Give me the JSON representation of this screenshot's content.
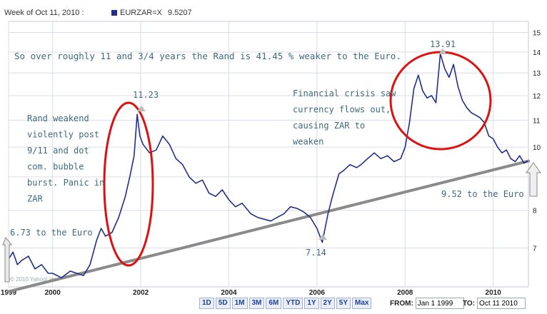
{
  "header": {
    "week_label": "Week of Oct 11, 2010 :",
    "series_label": "EURZAR=X",
    "series_value": "9.5207"
  },
  "watermark": "© 2010 Yahoo! Inc.",
  "toolbar": {
    "ranges": [
      "1D",
      "5D",
      "1M",
      "3M",
      "6M",
      "YTD",
      "1Y",
      "2Y",
      "5Y",
      "Max"
    ],
    "from_label": "FROM:",
    "from_value": "Jan 1 1999",
    "to_label": "TO:",
    "to_value": "Oct 11 2010"
  },
  "annotations": {
    "summary": "So over roughly 11 and 3/4 years the Rand is 41.45 % weaker to the Euro.",
    "rand_weakened": [
      "Rand weakend",
      "violently post",
      "9/11 and dot",
      "com. bubble",
      "burst. Panic in",
      "ZAR"
    ],
    "financial_crisis": [
      "Financial crisis saw",
      "currency flows out,",
      "causing ZAR to",
      "weaken"
    ],
    "start_note": "6.73 to the Euro",
    "end_note": "9.52 to the Euro",
    "peak_2001": "11.23",
    "low_2006": "7.14",
    "peak_2008": "13.91"
  },
  "colors": {
    "series": "#1f2f8a",
    "trendline": "#8a8a8a",
    "ellipse": "#dd1111",
    "annotation_text": "#3f6a7c",
    "grid": "#d9dde8"
  },
  "chart_data": {
    "type": "line",
    "title": "",
    "xlabel": "",
    "ylabel": "",
    "scale": "log",
    "xlim": [
      1999.0,
      2010.8
    ],
    "ylim": [
      6.1,
      15.6
    ],
    "x_ticks": [
      1999,
      2000,
      2002,
      2004,
      2006,
      2008,
      2010
    ],
    "y_ticks": [
      7,
      8,
      9,
      10,
      11,
      12,
      13,
      14,
      15
    ],
    "grid": true,
    "legend": "top-left",
    "series": [
      {
        "name": "EURZAR=X",
        "points": [
          [
            1999.0,
            6.73
          ],
          [
            1999.1,
            6.9
          ],
          [
            1999.2,
            6.6
          ],
          [
            1999.3,
            6.7
          ],
          [
            1999.45,
            6.8
          ],
          [
            1999.6,
            6.5
          ],
          [
            1999.75,
            6.6
          ],
          [
            1999.9,
            6.4
          ],
          [
            2000.0,
            6.4
          ],
          [
            2000.2,
            6.3
          ],
          [
            2000.4,
            6.45
          ],
          [
            2000.55,
            6.4
          ],
          [
            2000.7,
            6.35
          ],
          [
            2000.85,
            6.6
          ],
          [
            2001.0,
            7.2
          ],
          [
            2001.1,
            7.5
          ],
          [
            2001.2,
            7.3
          ],
          [
            2001.35,
            7.4
          ],
          [
            2001.5,
            7.8
          ],
          [
            2001.65,
            8.4
          ],
          [
            2001.75,
            9.0
          ],
          [
            2001.85,
            9.7
          ],
          [
            2001.92,
            11.23
          ],
          [
            2001.98,
            10.4
          ],
          [
            2002.05,
            10.1
          ],
          [
            2002.2,
            9.8
          ],
          [
            2002.35,
            9.9
          ],
          [
            2002.5,
            10.4
          ],
          [
            2002.65,
            10.1
          ],
          [
            2002.8,
            9.6
          ],
          [
            2002.95,
            9.4
          ],
          [
            2003.1,
            9.0
          ],
          [
            2003.25,
            8.8
          ],
          [
            2003.4,
            8.9
          ],
          [
            2003.55,
            8.5
          ],
          [
            2003.7,
            8.4
          ],
          [
            2003.85,
            8.6
          ],
          [
            2004.0,
            8.3
          ],
          [
            2004.15,
            8.1
          ],
          [
            2004.3,
            8.2
          ],
          [
            2004.5,
            7.9
          ],
          [
            2004.65,
            7.8
          ],
          [
            2004.8,
            7.75
          ],
          [
            2004.95,
            7.7
          ],
          [
            2005.1,
            7.8
          ],
          [
            2005.25,
            7.9
          ],
          [
            2005.4,
            8.1
          ],
          [
            2005.55,
            8.05
          ],
          [
            2005.7,
            7.95
          ],
          [
            2005.85,
            7.8
          ],
          [
            2006.0,
            7.5
          ],
          [
            2006.12,
            7.14
          ],
          [
            2006.25,
            7.9
          ],
          [
            2006.35,
            8.4
          ],
          [
            2006.5,
            9.1
          ],
          [
            2006.6,
            9.2
          ],
          [
            2006.75,
            9.4
          ],
          [
            2006.9,
            9.3
          ],
          [
            2007.0,
            9.4
          ],
          [
            2007.15,
            9.6
          ],
          [
            2007.3,
            9.8
          ],
          [
            2007.45,
            9.6
          ],
          [
            2007.6,
            9.7
          ],
          [
            2007.75,
            9.5
          ],
          [
            2007.9,
            9.6
          ],
          [
            2008.0,
            10.0
          ],
          [
            2008.1,
            10.9
          ],
          [
            2008.2,
            12.3
          ],
          [
            2008.3,
            12.9
          ],
          [
            2008.4,
            12.2
          ],
          [
            2008.5,
            11.9
          ],
          [
            2008.6,
            12.0
          ],
          [
            2008.7,
            11.7
          ],
          [
            2008.8,
            13.91
          ],
          [
            2008.9,
            13.2
          ],
          [
            2009.0,
            12.8
          ],
          [
            2009.1,
            13.4
          ],
          [
            2009.2,
            12.4
          ],
          [
            2009.3,
            11.8
          ],
          [
            2009.4,
            11.5
          ],
          [
            2009.5,
            11.3
          ],
          [
            2009.6,
            11.2
          ],
          [
            2009.7,
            11.1
          ],
          [
            2009.8,
            10.9
          ],
          [
            2009.9,
            10.4
          ],
          [
            2010.0,
            10.3
          ],
          [
            2010.1,
            10.0
          ],
          [
            2010.2,
            9.8
          ],
          [
            2010.3,
            9.9
          ],
          [
            2010.4,
            9.6
          ],
          [
            2010.5,
            9.5
          ],
          [
            2010.6,
            9.7
          ],
          [
            2010.7,
            9.45
          ],
          [
            2010.78,
            9.52
          ]
        ]
      },
      {
        "name": "trendline",
        "points": [
          [
            1999.0,
            6.0
          ],
          [
            2010.8,
            9.52
          ]
        ]
      }
    ]
  }
}
